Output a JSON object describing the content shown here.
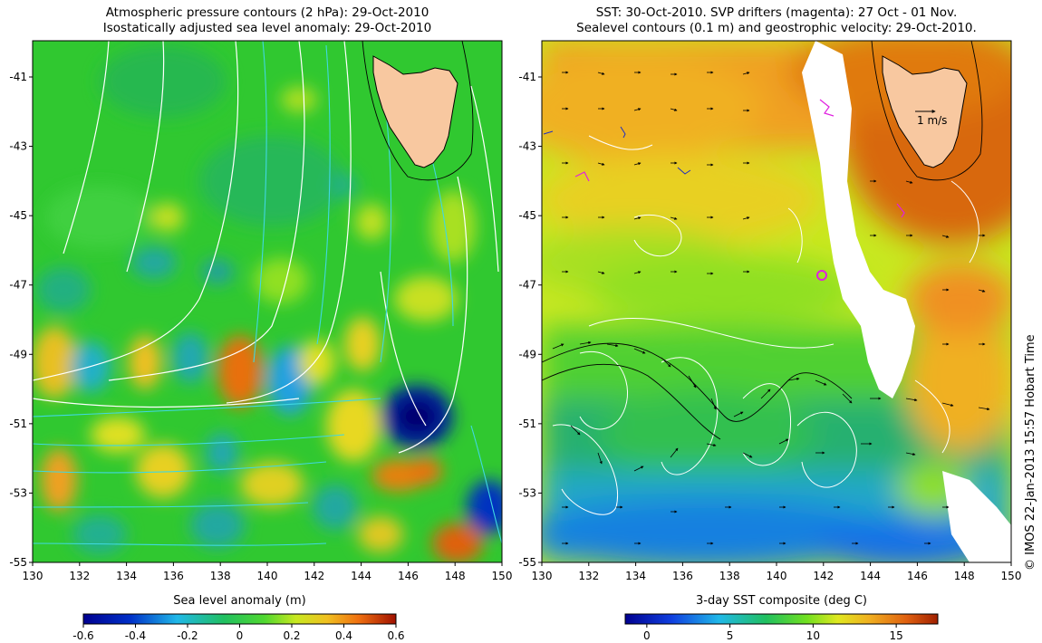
{
  "left_panel": {
    "title_line1": "Atmospheric pressure contours (2 hPa): 29-Oct-2010",
    "title_line2": "Isostatically adjusted sea level anomaly: 29-Oct-2010",
    "colorbar_label": "Sea level anomaly (m)",
    "colorbar_ticks": [
      "-0.6",
      "-0.4",
      "-0.2",
      "0",
      "0.2",
      "0.4",
      "0.6"
    ]
  },
  "right_panel": {
    "title_line1": "SST: 30-Oct-2010. SVP drifters (magenta): 27 Oct - 01 Nov.",
    "title_line2": "Sealevel contours (0.1 m) and geostrophic velocity: 29-Oct-2010.",
    "colorbar_label": "3-day SST composite (deg C)",
    "colorbar_ticks": [
      "0",
      "5",
      "10",
      "15"
    ],
    "velocity_scale_label": "1 m/s"
  },
  "axes": {
    "lon_ticks": [
      "130",
      "132",
      "134",
      "136",
      "138",
      "140",
      "142",
      "144",
      "146",
      "148",
      "150"
    ],
    "lat_ticks": [
      "-41",
      "-43",
      "-45",
      "-47",
      "-49",
      "-51",
      "-53",
      "-55"
    ]
  },
  "credit": "© IMOS 22-Jan-2013 15:57 Hobart Time",
  "colors": {
    "land": "#f8c8a0",
    "pressure_contours": "#ffffff",
    "sealevel_contours_left": "#40d8e0",
    "drifters": "#e020e0",
    "no_data": "#ffffff"
  }
}
